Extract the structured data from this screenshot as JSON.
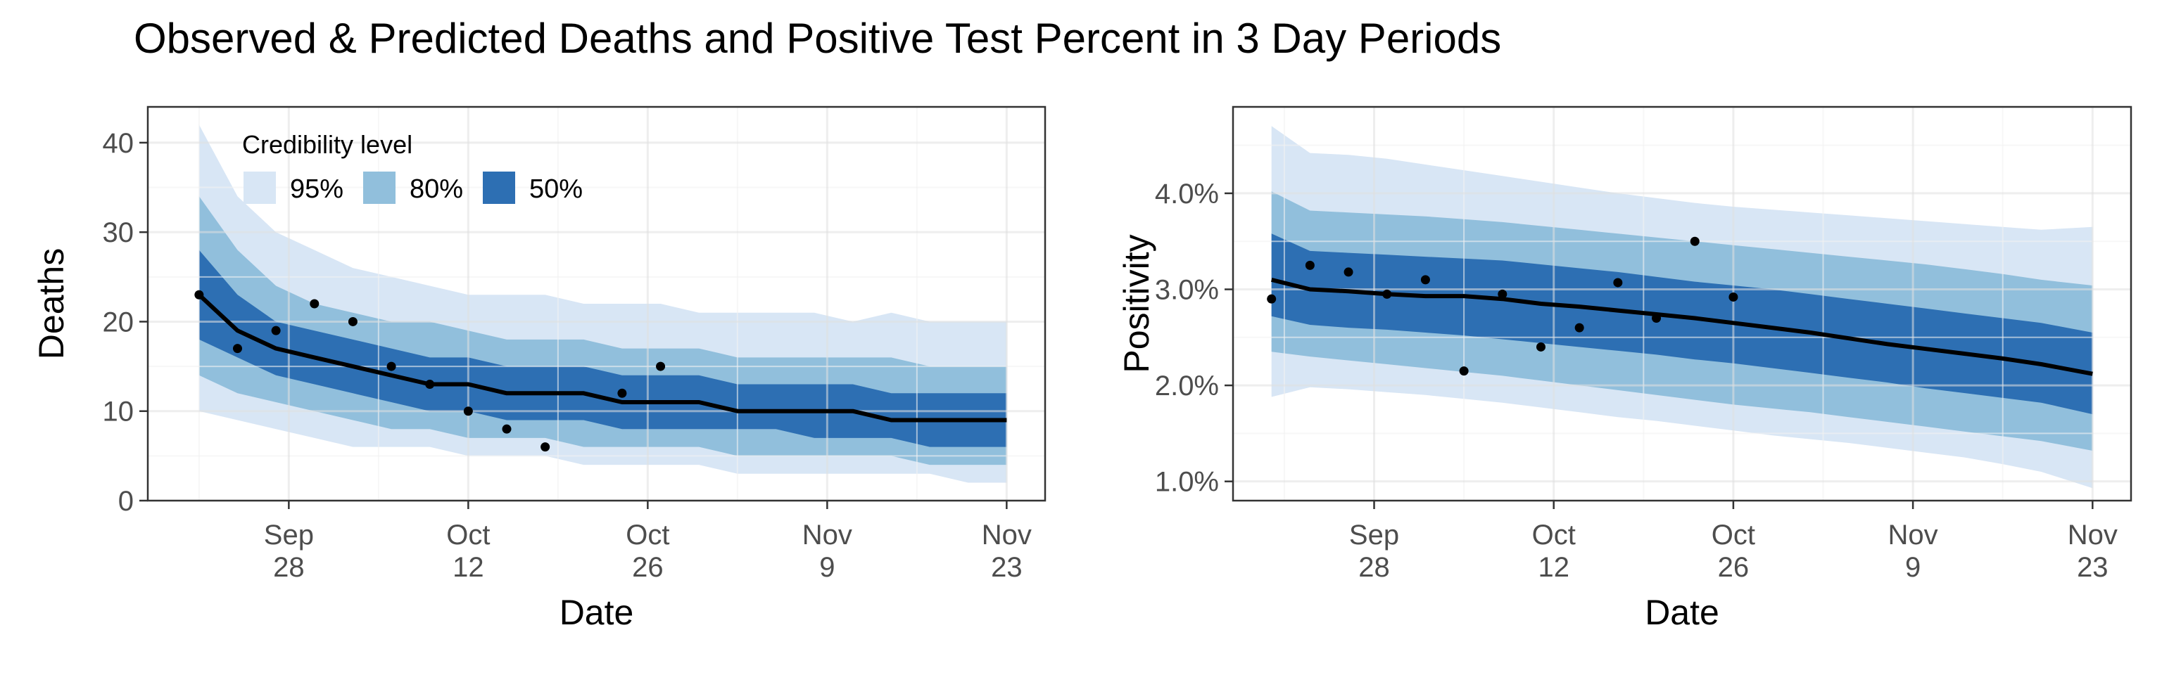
{
  "figure": {
    "title": "Observed & Predicted Deaths and Positive Test Percent in 3 Day Periods"
  },
  "colors": {
    "band_95": "#d8e6f5",
    "band_80": "#91bfdc",
    "band_50": "#2d6fb3",
    "median_line": "#000000",
    "points": "#000000",
    "grid_major": "#e1e1e1",
    "grid_minor": "#f2f2f2",
    "panel_border": "#333333"
  },
  "legend": {
    "title": "Credibility level",
    "items": [
      {
        "label": "95%",
        "color_key": "band_95"
      },
      {
        "label": "80%",
        "color_key": "band_80"
      },
      {
        "label": "50%",
        "color_key": "band_50"
      }
    ]
  },
  "chart_data": [
    {
      "type": "area",
      "panel": "deaths",
      "xlabel": "Date",
      "ylabel": "Deaths",
      "x_ticks": [
        {
          "date": "2020-09-28",
          "label_top": "Sep",
          "label_bottom": "28"
        },
        {
          "date": "2020-10-12",
          "label_top": "Oct",
          "label_bottom": "12"
        },
        {
          "date": "2020-10-26",
          "label_top": "Oct",
          "label_bottom": "26"
        },
        {
          "date": "2020-11-09",
          "label_top": "Nov",
          "label_bottom": "9"
        },
        {
          "date": "2020-11-23",
          "label_top": "Nov",
          "label_bottom": "23"
        }
      ],
      "xlim": [
        "2020-09-17",
        "2020-11-26"
      ],
      "ylim": [
        0,
        44
      ],
      "y_ticks": [
        {
          "value": 0,
          "label": "0"
        },
        {
          "value": 10,
          "label": "10"
        },
        {
          "value": 20,
          "label": "20"
        },
        {
          "value": 30,
          "label": "30"
        },
        {
          "value": 40,
          "label": "40"
        }
      ],
      "legend_position": "top-left",
      "grid": true,
      "x": [
        "2020-09-21",
        "2020-09-24",
        "2020-09-27",
        "2020-09-30",
        "2020-10-03",
        "2020-10-06",
        "2020-10-09",
        "2020-10-12",
        "2020-10-15",
        "2020-10-18",
        "2020-10-21",
        "2020-10-24",
        "2020-10-27",
        "2020-10-30",
        "2020-11-02",
        "2020-11-05",
        "2020-11-08",
        "2020-11-11",
        "2020-11-14",
        "2020-11-17",
        "2020-11-20",
        "2020-11-23"
      ],
      "median": [
        23,
        19,
        17,
        16,
        15,
        14,
        13,
        13,
        12,
        12,
        12,
        11,
        11,
        11,
        10,
        10,
        10,
        10,
        9,
        9,
        9,
        9
      ],
      "lower_50": [
        18,
        16,
        14,
        13,
        12,
        11,
        10,
        10,
        9,
        9,
        9,
        8,
        8,
        8,
        8,
        8,
        7,
        7,
        7,
        6,
        6,
        6
      ],
      "upper_50": [
        28,
        23,
        20,
        19,
        18,
        17,
        16,
        16,
        15,
        15,
        15,
        14,
        14,
        14,
        13,
        13,
        13,
        13,
        12,
        12,
        12,
        12
      ],
      "lower_80": [
        14,
        12,
        11,
        10,
        9,
        8,
        8,
        7,
        7,
        7,
        6,
        6,
        6,
        6,
        5,
        5,
        5,
        5,
        5,
        4,
        4,
        4
      ],
      "upper_80": [
        34,
        28,
        24,
        22,
        21,
        20,
        20,
        19,
        18,
        18,
        18,
        17,
        17,
        17,
        16,
        16,
        16,
        16,
        16,
        15,
        15,
        15
      ],
      "lower_95": [
        10,
        9,
        8,
        7,
        6,
        6,
        6,
        5,
        5,
        5,
        4,
        4,
        4,
        4,
        3,
        3,
        3,
        3,
        3,
        3,
        2,
        2
      ],
      "upper_95": [
        42,
        34,
        30,
        28,
        26,
        25,
        24,
        23,
        23,
        23,
        22,
        22,
        22,
        21,
        21,
        21,
        21,
        20,
        21,
        20,
        20,
        20
      ],
      "observed": {
        "x": [
          "2020-09-21",
          "2020-09-24",
          "2020-09-27",
          "2020-09-30",
          "2020-10-03",
          "2020-10-06",
          "2020-10-09",
          "2020-10-12",
          "2020-10-15",
          "2020-10-18",
          "2020-10-24",
          "2020-10-27"
        ],
        "y": [
          23,
          17,
          19,
          22,
          20,
          15,
          13,
          10,
          8,
          6,
          12,
          15
        ]
      }
    },
    {
      "type": "area",
      "panel": "positivity",
      "xlabel": "Date",
      "ylabel": "Positivity",
      "x_ticks": [
        {
          "date": "2020-09-28",
          "label_top": "Sep",
          "label_bottom": "28"
        },
        {
          "date": "2020-10-12",
          "label_top": "Oct",
          "label_bottom": "12"
        },
        {
          "date": "2020-10-26",
          "label_top": "Oct",
          "label_bottom": "26"
        },
        {
          "date": "2020-11-09",
          "label_top": "Nov",
          "label_bottom": "9"
        },
        {
          "date": "2020-11-23",
          "label_top": "Nov",
          "label_bottom": "23"
        }
      ],
      "xlim": [
        "2020-09-17",
        "2020-11-26"
      ],
      "ylim": [
        0.8,
        4.9
      ],
      "y_ticks": [
        {
          "value": 1.0,
          "label": "1.0%"
        },
        {
          "value": 2.0,
          "label": "2.0%"
        },
        {
          "value": 3.0,
          "label": "3.0%"
        },
        {
          "value": 4.0,
          "label": "4.0%"
        }
      ],
      "grid": true,
      "x": [
        "2020-09-20",
        "2020-09-23",
        "2020-09-26",
        "2020-09-29",
        "2020-10-02",
        "2020-10-05",
        "2020-10-08",
        "2020-10-11",
        "2020-10-14",
        "2020-10-17",
        "2020-10-20",
        "2020-10-23",
        "2020-10-26",
        "2020-10-29",
        "2020-11-01",
        "2020-11-04",
        "2020-11-07",
        "2020-11-10",
        "2020-11-13",
        "2020-11-16",
        "2020-11-19",
        "2020-11-23"
      ],
      "median": [
        3.1,
        3.0,
        2.98,
        2.95,
        2.93,
        2.93,
        2.9,
        2.85,
        2.82,
        2.78,
        2.74,
        2.7,
        2.65,
        2.6,
        2.55,
        2.49,
        2.43,
        2.38,
        2.33,
        2.28,
        2.22,
        2.12
      ],
      "lower_50": [
        2.72,
        2.63,
        2.6,
        2.58,
        2.55,
        2.52,
        2.48,
        2.44,
        2.4,
        2.36,
        2.32,
        2.27,
        2.23,
        2.18,
        2.13,
        2.08,
        2.03,
        1.97,
        1.92,
        1.87,
        1.82,
        1.7
      ],
      "upper_50": [
        3.58,
        3.4,
        3.38,
        3.36,
        3.34,
        3.32,
        3.3,
        3.26,
        3.22,
        3.18,
        3.13,
        3.08,
        3.04,
        3.0,
        2.95,
        2.9,
        2.85,
        2.8,
        2.75,
        2.7,
        2.65,
        2.55
      ],
      "lower_80": [
        2.35,
        2.3,
        2.26,
        2.22,
        2.18,
        2.14,
        2.1,
        2.05,
        2.0,
        1.95,
        1.9,
        1.85,
        1.8,
        1.76,
        1.72,
        1.67,
        1.62,
        1.57,
        1.52,
        1.47,
        1.42,
        1.32
      ],
      "upper_80": [
        4.02,
        3.82,
        3.8,
        3.78,
        3.76,
        3.73,
        3.7,
        3.66,
        3.62,
        3.58,
        3.54,
        3.5,
        3.46,
        3.42,
        3.38,
        3.34,
        3.3,
        3.26,
        3.21,
        3.16,
        3.1,
        3.04
      ],
      "lower_95": [
        1.88,
        1.98,
        1.96,
        1.93,
        1.9,
        1.86,
        1.82,
        1.77,
        1.72,
        1.67,
        1.63,
        1.58,
        1.53,
        1.48,
        1.44,
        1.4,
        1.35,
        1.3,
        1.25,
        1.18,
        1.1,
        0.93
      ],
      "upper_95": [
        4.7,
        4.42,
        4.4,
        4.36,
        4.3,
        4.24,
        4.18,
        4.12,
        4.06,
        4.0,
        3.95,
        3.9,
        3.86,
        3.83,
        3.8,
        3.77,
        3.74,
        3.71,
        3.68,
        3.65,
        3.62,
        3.65
      ],
      "observed": {
        "x": [
          "2020-09-20",
          "2020-09-23",
          "2020-09-26",
          "2020-09-29",
          "2020-10-02",
          "2020-10-05",
          "2020-10-08",
          "2020-10-11",
          "2020-10-14",
          "2020-10-17",
          "2020-10-20",
          "2020-10-23",
          "2020-10-26"
        ],
        "y": [
          2.9,
          3.25,
          3.18,
          2.95,
          3.1,
          2.15,
          2.95,
          2.4,
          2.6,
          3.07,
          2.7,
          3.5,
          2.92
        ]
      }
    }
  ]
}
